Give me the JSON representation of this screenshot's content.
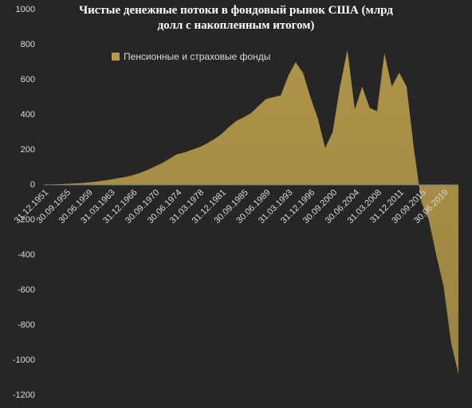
{
  "chart_data": {
    "type": "area",
    "title": "Чистые денежные потоки в фондовый рынок США (млрд долл с накопленным итогом)",
    "categories": [
      "31.12.1951",
      null,
      null,
      "30.09.1955",
      null,
      null,
      "30.06.1959",
      null,
      null,
      "31.03.1963",
      null,
      null,
      "31.12.1966",
      null,
      null,
      "30.09.1970",
      null,
      null,
      "30.06.1974",
      null,
      null,
      "31.03.1978",
      null,
      null,
      "31.12.1981",
      null,
      null,
      "30.09.1985",
      null,
      null,
      "30.06.1989",
      null,
      null,
      "31.03.1993",
      null,
      null,
      "31.12.1996",
      null,
      null,
      "30.09.2000",
      null,
      null,
      "30.06.2004",
      null,
      null,
      "31.03.2008",
      null,
      null,
      "31.12.2011",
      null,
      null,
      "30.09.2015",
      null,
      null,
      "30.06.2019",
      null,
      null
    ],
    "series": [
      {
        "name": "Пенсионные и страховые фонды",
        "color": "#b59a4a",
        "values": [
          0,
          2,
          4,
          6,
          8,
          10,
          14,
          18,
          24,
          30,
          38,
          45,
          55,
          68,
          85,
          105,
          125,
          150,
          175,
          185,
          200,
          215,
          235,
          260,
          290,
          330,
          365,
          385,
          410,
          450,
          490,
          500,
          510,
          620,
          700,
          640,
          500,
          380,
          210,
          300,
          560,
          770,
          430,
          560,
          440,
          420,
          750,
          560,
          640,
          560,
          200,
          -100,
          -200,
          -400,
          -580,
          -900,
          -1080
        ]
      }
    ],
    "ylim": [
      -1200,
      1000
    ],
    "yticks": [
      -1200,
      -1000,
      -800,
      -600,
      -400,
      -200,
      0,
      200,
      400,
      600,
      800,
      1000
    ],
    "grid": false,
    "legend": "top-left"
  }
}
